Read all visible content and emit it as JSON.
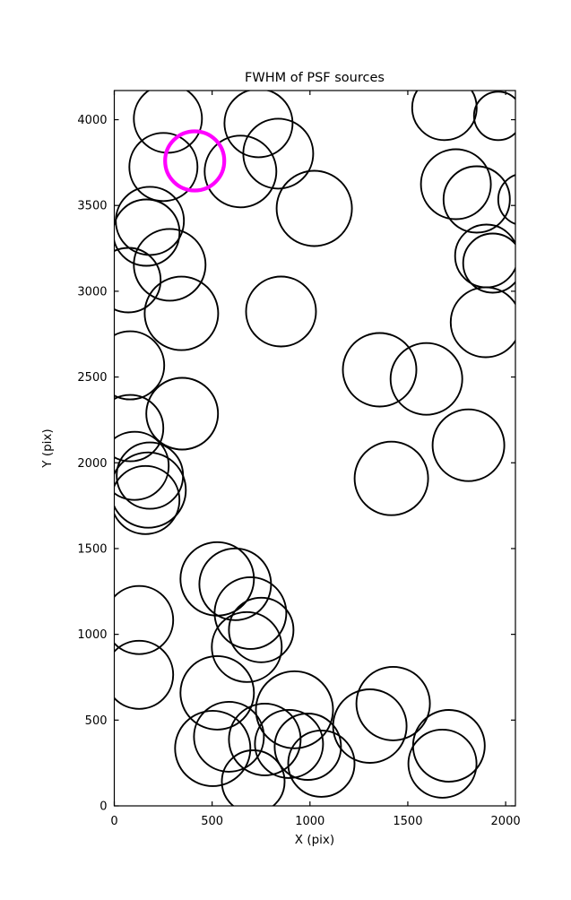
{
  "figure": {
    "title": "FWHM of PSF sources",
    "xlabel": "X (pix)",
    "ylabel": "Y (pix)"
  },
  "chart_data": {
    "type": "scatter",
    "title": "FWHM of PSF sources",
    "xlabel": "X (pix)",
    "ylabel": "Y (pix)",
    "xlim": [
      0,
      2050
    ],
    "ylim": [
      0,
      4170
    ],
    "xticks": [
      0,
      500,
      1000,
      1500,
      2000
    ],
    "yticks": [
      0,
      500,
      1000,
      1500,
      2000,
      2500,
      3000,
      3500,
      4000
    ],
    "grid": false,
    "legend": "none",
    "marker": "open-circle",
    "background": "#ffffff",
    "axes_color": "#000000",
    "series": [
      {
        "name": "psf_sources",
        "color": "#000000",
        "stroke_px": 1.9,
        "points": [
          {
            "x": 274,
            "y": 4006,
            "r": 38
          },
          {
            "x": 251,
            "y": 3724,
            "r": 38
          },
          {
            "x": 737,
            "y": 3980,
            "r": 38
          },
          {
            "x": 838,
            "y": 3802,
            "r": 39
          },
          {
            "x": 645,
            "y": 3698,
            "r": 40
          },
          {
            "x": 1022,
            "y": 3483,
            "r": 42
          },
          {
            "x": 182,
            "y": 3410,
            "r": 38
          },
          {
            "x": 164,
            "y": 3342,
            "r": 37
          },
          {
            "x": 283,
            "y": 3154,
            "r": 40
          },
          {
            "x": 72,
            "y": 3065,
            "r": 36
          },
          {
            "x": 343,
            "y": 2871,
            "r": 41
          },
          {
            "x": 852,
            "y": 2882,
            "r": 39
          },
          {
            "x": 81,
            "y": 2568,
            "r": 38
          },
          {
            "x": 347,
            "y": 2286,
            "r": 40
          },
          {
            "x": 81,
            "y": 2202,
            "r": 37
          },
          {
            "x": 104,
            "y": 1982,
            "r": 38
          },
          {
            "x": 182,
            "y": 1925,
            "r": 37
          },
          {
            "x": 173,
            "y": 1841,
            "r": 42
          },
          {
            "x": 159,
            "y": 1783,
            "r": 38
          },
          {
            "x": 127,
            "y": 1083,
            "r": 38
          },
          {
            "x": 127,
            "y": 764,
            "r": 38
          },
          {
            "x": 526,
            "y": 1323,
            "r": 41
          },
          {
            "x": 618,
            "y": 1292,
            "r": 40
          },
          {
            "x": 696,
            "y": 1124,
            "r": 40
          },
          {
            "x": 751,
            "y": 1025,
            "r": 36
          },
          {
            "x": 677,
            "y": 926,
            "r": 39
          },
          {
            "x": 526,
            "y": 659,
            "r": 41
          },
          {
            "x": 921,
            "y": 560,
            "r": 43
          },
          {
            "x": 503,
            "y": 335,
            "r": 42
          },
          {
            "x": 586,
            "y": 403,
            "r": 39
          },
          {
            "x": 769,
            "y": 387,
            "r": 40
          },
          {
            "x": 893,
            "y": 361,
            "r": 38
          },
          {
            "x": 989,
            "y": 345,
            "r": 37
          },
          {
            "x": 710,
            "y": 141,
            "r": 35
          },
          {
            "x": 1058,
            "y": 246,
            "r": 37
          },
          {
            "x": 1425,
            "y": 596,
            "r": 41
          },
          {
            "x": 1306,
            "y": 465,
            "r": 41
          },
          {
            "x": 1710,
            "y": 350,
            "r": 40
          },
          {
            "x": 1677,
            "y": 246,
            "r": 38
          },
          {
            "x": 1356,
            "y": 2542,
            "r": 41
          },
          {
            "x": 1595,
            "y": 2489,
            "r": 40
          },
          {
            "x": 1810,
            "y": 2102,
            "r": 40
          },
          {
            "x": 1416,
            "y": 1909,
            "r": 41
          },
          {
            "x": 1898,
            "y": 2819,
            "r": 39
          },
          {
            "x": 1746,
            "y": 3624,
            "r": 39
          },
          {
            "x": 1852,
            "y": 3535,
            "r": 37
          },
          {
            "x": 2095,
            "y": 3535,
            "r": 29
          },
          {
            "x": 1902,
            "y": 3206,
            "r": 35
          },
          {
            "x": 1934,
            "y": 3164,
            "r": 33
          },
          {
            "x": 1687,
            "y": 4069,
            "r": 36
          },
          {
            "x": 1962,
            "y": 4022,
            "r": 27
          }
        ]
      },
      {
        "name": "highlighted_source",
        "color": "#FF00FF",
        "stroke_px": 4.2,
        "points": [
          {
            "x": 411,
            "y": 3760,
            "r": 33
          }
        ]
      }
    ]
  }
}
